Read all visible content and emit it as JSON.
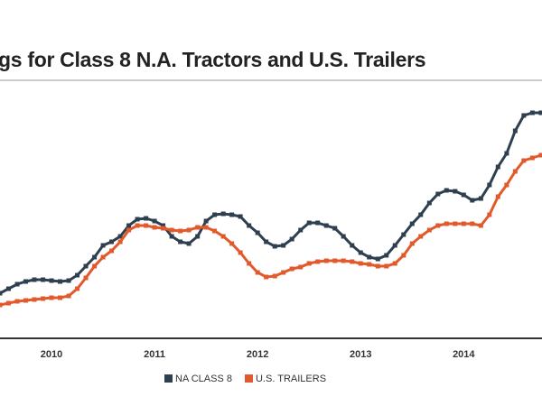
{
  "chart_data": {
    "type": "line",
    "title": "gs for Class 8 N.A. Tractors and U.S. Trailers",
    "x": [
      2010,
      2010.083,
      2010.167,
      2010.25,
      2010.333,
      2010.417,
      2010.5,
      2010.583,
      2010.667,
      2010.75,
      2010.833,
      2010.917,
      2011,
      2011.083,
      2011.167,
      2011.25,
      2011.333,
      2011.417,
      2011.5,
      2011.583,
      2011.667,
      2011.75,
      2011.833,
      2011.917,
      2012,
      2012.083,
      2012.167,
      2012.25,
      2012.333,
      2012.417,
      2012.5,
      2012.583,
      2012.667,
      2012.75,
      2012.833,
      2012.917,
      2013,
      2013.083,
      2013.167,
      2013.25,
      2013.333,
      2013.417,
      2013.5,
      2013.583,
      2013.667,
      2013.75,
      2013.833,
      2013.917,
      2014,
      2014.083,
      2014.167,
      2014.25,
      2014.333,
      2014.417,
      2014.5,
      2014.583,
      2014.667,
      2014.75,
      2014.833,
      2014.917,
      2015,
      2015.083,
      2015.167,
      2015.25
    ],
    "series": [
      {
        "name": "NA CLASS 8",
        "color": "#2e3f4f",
        "values": [
          50,
          55,
          60,
          63,
          65,
          65,
          64,
          63,
          64,
          70,
          80,
          90,
          103,
          107,
          113,
          125,
          132,
          133,
          130,
          125,
          113,
          107,
          105,
          113,
          130,
          137,
          138,
          137,
          135,
          125,
          117,
          107,
          102,
          103,
          110,
          120,
          128,
          128,
          125,
          122,
          113,
          103,
          95,
          90,
          88,
          92,
          103,
          115,
          127,
          137,
          150,
          160,
          164,
          163,
          159,
          153,
          155,
          170,
          190,
          205,
          230,
          247,
          250,
          250
        ]
      },
      {
        "name": "U.S. TRAILERS",
        "color": "#e2592b",
        "values": [
          37,
          39,
          41,
          42,
          43,
          44,
          45,
          45,
          47,
          55,
          67,
          80,
          90,
          97,
          107,
          120,
          125,
          125,
          123,
          122,
          120,
          119,
          120,
          123,
          123,
          119,
          113,
          105,
          95,
          83,
          73,
          68,
          69,
          73,
          77,
          79,
          83,
          85,
          86,
          86,
          86,
          85,
          83,
          82,
          80,
          80,
          83,
          92,
          105,
          113,
          120,
          125,
          127,
          127,
          127,
          127,
          125,
          137,
          157,
          170,
          185,
          197,
          200,
          203
        ]
      }
    ],
    "xlim": [
      2010,
      2015.26
    ],
    "xticks": [
      {
        "value": 2010.5,
        "label": "2010"
      },
      {
        "value": 2011.5,
        "label": "2011"
      },
      {
        "value": 2012.5,
        "label": "2012"
      },
      {
        "value": 2013.5,
        "label": "2013"
      },
      {
        "value": 2014.5,
        "label": "2014"
      }
    ],
    "ylim": [
      0,
      287
    ],
    "legend": "bottom"
  }
}
